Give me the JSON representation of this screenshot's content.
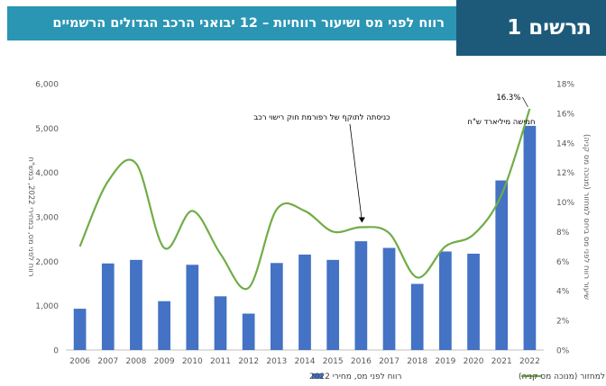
{
  "header": {
    "figure_label": "תרשים 1",
    "title": "רווח לפני מס ושיעור רווחיות – 12 יבואני הרכב הגדולים הרשמיים"
  },
  "colors": {
    "title_band": "#2a96b4",
    "figure_band": "#1d5a7a",
    "bars": "#4472c4",
    "line": "#70ad47"
  },
  "chart_data": {
    "type": "bar",
    "categories": [
      "2006",
      "2007",
      "2008",
      "2009",
      "2010",
      "2011",
      "2012",
      "2013",
      "2014",
      "2015",
      "2016",
      "2017",
      "2018",
      "2019",
      "2020",
      "2021",
      "2022"
    ],
    "series": [
      {
        "name": "רווח לפני מס, מחירי 2022",
        "type": "bar",
        "axis": "left",
        "values": [
          930,
          1950,
          2030,
          1100,
          1920,
          1210,
          820,
          1960,
          2150,
          2030,
          2450,
          2300,
          1490,
          2220,
          2170,
          3820,
          5050
        ]
      },
      {
        "name": "שיעור רווח לפני מס ביחס למחזור (מנוכה מס קניה)",
        "type": "line",
        "axis": "right",
        "values": [
          7.0,
          11.4,
          12.6,
          6.9,
          9.4,
          6.5,
          4.2,
          9.5,
          9.4,
          8.0,
          8.3,
          7.9,
          4.9,
          7.0,
          7.8,
          10.5,
          16.3
        ]
      }
    ],
    "ylabel": "רווח לפני מס, במחירי 2022, במש\"ח",
    "ylim": [
      0,
      6000
    ],
    "yticks": [
      "0",
      "1,000",
      "2,000",
      "3,000",
      "4,000",
      "5,000",
      "6,000"
    ],
    "y2label": "שיעור רווח לפני מס ביחס למחזור (מנוכה מס קניה)",
    "y2lim": [
      0,
      18
    ],
    "y2ticks": [
      "0%",
      "2%",
      "4%",
      "6%",
      "8%",
      "10%",
      "12%",
      "14%",
      "16%",
      "18%"
    ],
    "annotations": [
      {
        "text": "כניסתה לתוקף של רפורמת חוק רישוי רכב",
        "x": "2016"
      },
      {
        "text": "16.3%",
        "x": "2022"
      },
      {
        "text": "חמישה מיליארד ש\"ח",
        "x": "2022"
      }
    ],
    "legend": [
      "רווח לפני מס, מחירי 2022",
      "שיעור רווח לפני מס ביחס למחזור (מנוכה מס קניה)"
    ],
    "legend_position": "bottom",
    "grid": false
  }
}
